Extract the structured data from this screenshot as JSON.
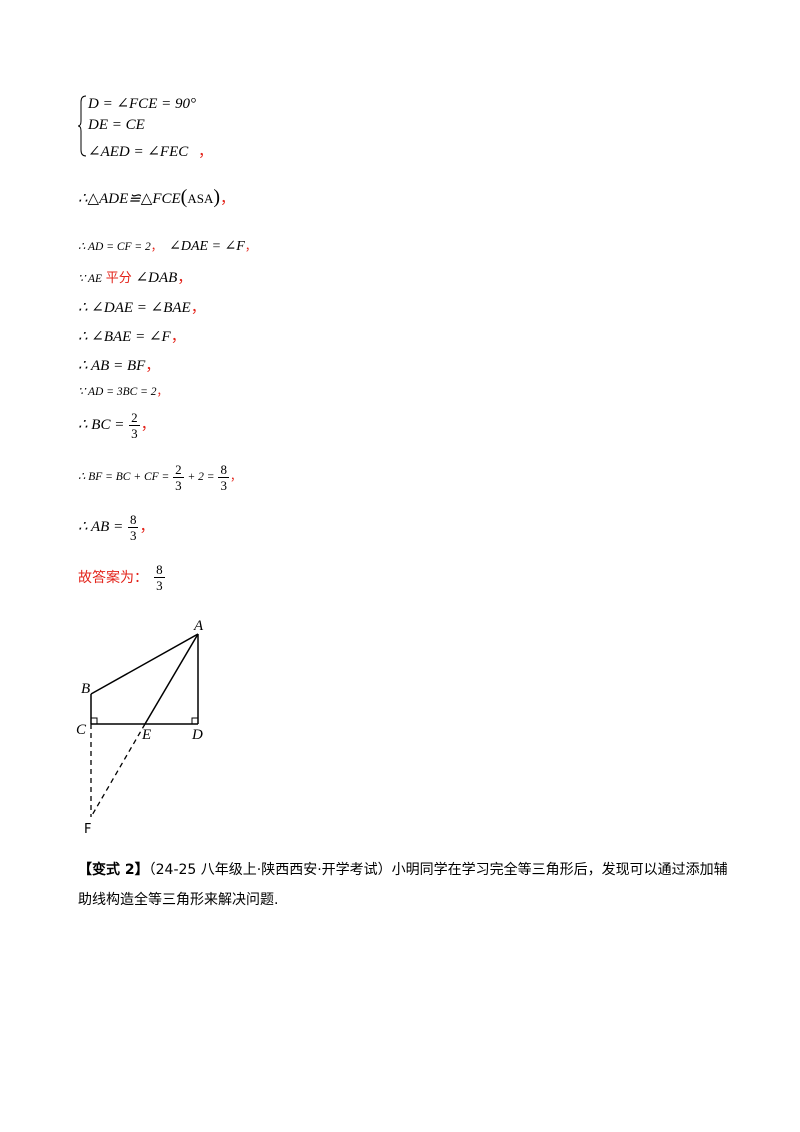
{
  "system": {
    "row1": "D = ∠FCE = 90°",
    "row2": "DE = CE",
    "row3": "∠AED = ∠FEC",
    "row3_punct": "，"
  },
  "congruence": {
    "lhs": "∴△ADE≌△FCE",
    "rule": "ASA",
    "punct": "，"
  },
  "line_ad_cf": {
    "eq1": "∴ AD = CF = 2",
    "sep": "，",
    "eq2": "∠DAE = ∠F",
    "punct": "，"
  },
  "line_bisect": {
    "pre": "∵ AE",
    "word": "平分",
    "post": "∠DAB",
    "punct": "，"
  },
  "line_dae_bae": {
    "text": "∴ ∠DAE = ∠BAE",
    "punct": "，"
  },
  "line_bae_f": {
    "text": "∴ ∠BAE = ∠F",
    "punct": "，"
  },
  "line_ab_bf": {
    "text": "∴ AB = BF",
    "punct": "，"
  },
  "line_ad_bc": {
    "text": "∵ AD = 3BC = 2",
    "punct": "，"
  },
  "line_bc": {
    "pre": "∴ BC =",
    "num": "2",
    "den": "3",
    "punct": "，"
  },
  "line_bf": {
    "pre": "∴ BF = BC + CF =",
    "num1": "2",
    "den1": "3",
    "mid": "+ 2 =",
    "num2": "8",
    "den2": "3",
    "punct": "，"
  },
  "line_ab": {
    "pre": "∴ AB =",
    "num": "8",
    "den": "3",
    "punct": "，"
  },
  "answer": {
    "label": "故答案为：",
    "num": "8",
    "den": "3"
  },
  "figure": {
    "labels": {
      "A": "A",
      "B": "B",
      "C": "C",
      "D": "D",
      "E": "E",
      "F": "F"
    }
  },
  "problem": {
    "tag": "【变式 2】",
    "source": "（24-25 八年级上·陕西西安·开学考试）",
    "text": "小明同学在学习完全等三角形后，发现可以通过添加辅助线构造全等三角形来解决问题."
  }
}
